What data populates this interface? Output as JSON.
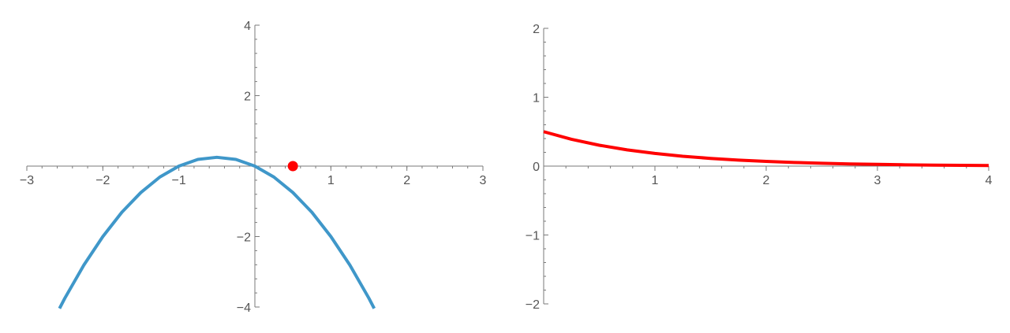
{
  "chart_data": [
    {
      "type": "line",
      "title": "",
      "xlabel": "",
      "ylabel": "",
      "xlim": [
        -3,
        3
      ],
      "ylim": [
        -4,
        4
      ],
      "x_ticks": [
        -3,
        -2,
        -1,
        1,
        2,
        3
      ],
      "x_tick_labels": [
        "−3",
        "−2",
        "−1",
        "1",
        "2",
        "3"
      ],
      "y_ticks": [
        4,
        2,
        -2,
        -4
      ],
      "y_tick_labels": [
        "4",
        "2",
        "−2",
        "−4"
      ],
      "grid": false,
      "series": [
        {
          "color": "#3f97c9",
          "x": [
            -2.57,
            -2.5,
            -2.25,
            -2.0,
            -1.75,
            -1.5,
            -1.25,
            -1.0,
            -0.75,
            -0.5,
            -0.25,
            0.0,
            0.25,
            0.5,
            0.75,
            1.0,
            1.25,
            1.5,
            1.57
          ],
          "y": [
            -4.04,
            -3.75,
            -2.81,
            -2.0,
            -1.31,
            -0.75,
            -0.31,
            0.0,
            0.19,
            0.25,
            0.19,
            0.0,
            -0.31,
            -0.75,
            -1.31,
            -2.0,
            -2.81,
            -3.75,
            -4.04
          ]
        }
      ],
      "points": [
        {
          "x": 0.5,
          "y": 0.0,
          "color": "#ff0000"
        }
      ]
    },
    {
      "type": "line",
      "title": "",
      "xlabel": "",
      "ylabel": "",
      "xlim": [
        0,
        4
      ],
      "ylim": [
        -2,
        2
      ],
      "x_ticks": [
        1,
        2,
        3,
        4
      ],
      "x_tick_labels": [
        "1",
        "2",
        "3",
        "4"
      ],
      "y_ticks": [
        2,
        1,
        0,
        -1,
        -2
      ],
      "y_tick_labels": [
        "2",
        "1",
        "0",
        "−1",
        "−2"
      ],
      "grid": false,
      "series": [
        {
          "color": "#ff0000",
          "x": [
            0,
            0.25,
            0.5,
            0.75,
            1.0,
            1.25,
            1.5,
            1.75,
            2.0,
            2.25,
            2.5,
            2.75,
            3.0,
            3.25,
            3.5,
            3.75,
            4.0
          ],
          "y": [
            0.5,
            0.389,
            0.303,
            0.236,
            0.184,
            0.143,
            0.112,
            0.087,
            0.068,
            0.053,
            0.041,
            0.032,
            0.025,
            0.019,
            0.015,
            0.012,
            0.009
          ]
        }
      ]
    }
  ]
}
